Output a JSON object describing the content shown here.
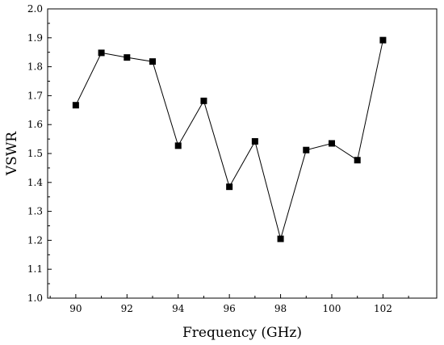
{
  "chart_data": {
    "type": "line",
    "title": "",
    "xlabel": "Frequency (GHz)",
    "ylabel": "VSWR",
    "xlim": [
      88.9,
      104.1
    ],
    "ylim": [
      1.0,
      2.0
    ],
    "x_ticks": [
      90,
      92,
      94,
      96,
      98,
      100,
      102
    ],
    "y_ticks": [
      1.0,
      1.1,
      1.2,
      1.3,
      1.4,
      1.5,
      1.6,
      1.7,
      1.8,
      1.9,
      2.0
    ],
    "x_tick_labels": [
      "90",
      "92",
      "94",
      "96",
      "98",
      "100",
      "102"
    ],
    "y_tick_labels": [
      "1.0",
      "1.1",
      "1.2",
      "1.3",
      "1.4",
      "1.5",
      "1.6",
      "1.7",
      "1.8",
      "1.9",
      "2.0"
    ],
    "grid": false,
    "legend": "none",
    "marker": "square",
    "line_color": "#000000",
    "series": [
      {
        "x": [
          90,
          91,
          92,
          93,
          94,
          95,
          96,
          97,
          98,
          99,
          100,
          101,
          102
        ],
        "y": [
          1.667,
          1.848,
          1.832,
          1.818,
          1.527,
          1.682,
          1.385,
          1.542,
          1.205,
          1.512,
          1.535,
          1.477,
          1.892
        ]
      }
    ]
  }
}
